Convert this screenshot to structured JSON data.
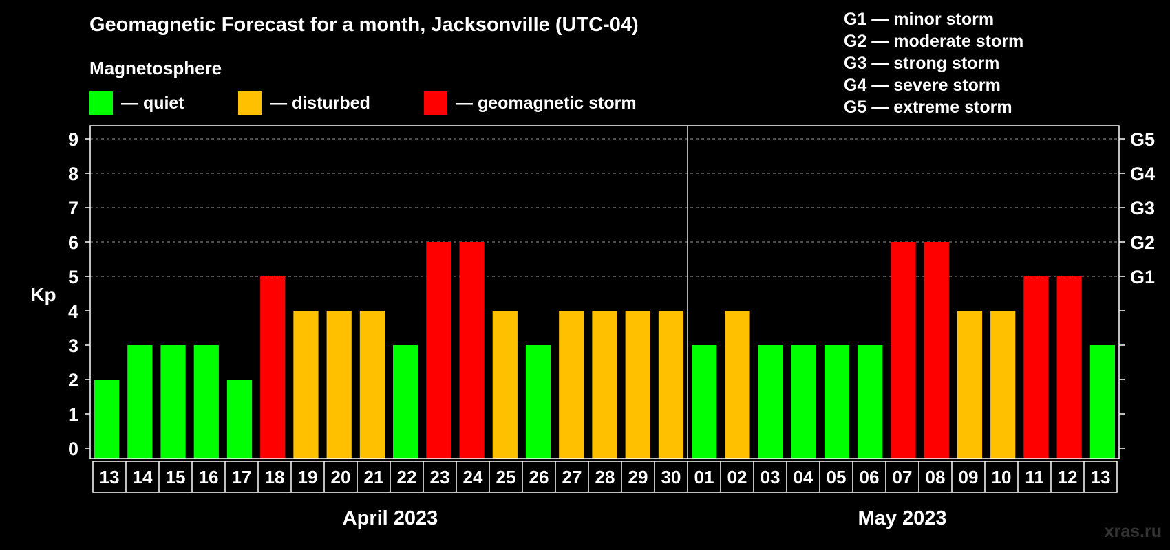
{
  "title": "Geomagnetic Forecast for a month, Jacksonville (UTC-04)",
  "legend": {
    "heading": "Magnetosphere",
    "items": [
      {
        "label": "— quiet",
        "color": "#00ff00"
      },
      {
        "label": "— disturbed",
        "color": "#ffc000"
      },
      {
        "label": "— geomagnetic storm",
        "color": "#ff0000"
      }
    ]
  },
  "storm_scale": [
    "G1 — minor storm",
    "G2 — moderate storm",
    "G3 — strong storm",
    "G4 — severe storm",
    "G5 — extreme storm"
  ],
  "watermark": "xras.ru",
  "chart_data": {
    "type": "bar",
    "ylabel": "Kp",
    "ylim": [
      0,
      9
    ],
    "yticks": [
      "0",
      "1",
      "2",
      "3",
      "4",
      "5",
      "6",
      "7",
      "8",
      "9"
    ],
    "right_axis_labels": [
      {
        "kp": 5,
        "label": "G1"
      },
      {
        "kp": 6,
        "label": "G2"
      },
      {
        "kp": 7,
        "label": "G3"
      },
      {
        "kp": 8,
        "label": "G4"
      },
      {
        "kp": 9,
        "label": "G5"
      }
    ],
    "grid": "dashed horizontal at Kp 5-9",
    "categories": [
      "13",
      "14",
      "15",
      "16",
      "17",
      "18",
      "19",
      "20",
      "21",
      "22",
      "23",
      "24",
      "25",
      "26",
      "27",
      "28",
      "29",
      "30",
      "01",
      "02",
      "03",
      "04",
      "05",
      "06",
      "07",
      "08",
      "09",
      "10",
      "11",
      "12",
      "13"
    ],
    "values": [
      2,
      3,
      3,
      3,
      2,
      5,
      4,
      4,
      4,
      3,
      6,
      6,
      4,
      3,
      4,
      4,
      4,
      4,
      3,
      4,
      3,
      3,
      3,
      3,
      6,
      6,
      4,
      4,
      5,
      5,
      3
    ],
    "status": [
      "quiet",
      "quiet",
      "quiet",
      "quiet",
      "quiet",
      "storm",
      "disturbed",
      "disturbed",
      "disturbed",
      "quiet",
      "storm",
      "storm",
      "disturbed",
      "quiet",
      "disturbed",
      "disturbed",
      "disturbed",
      "disturbed",
      "quiet",
      "disturbed",
      "quiet",
      "quiet",
      "quiet",
      "quiet",
      "storm",
      "storm",
      "disturbed",
      "disturbed",
      "storm",
      "storm",
      "quiet"
    ],
    "months": [
      {
        "label": "April 2023",
        "start": 0,
        "end": 17
      },
      {
        "label": "May 2023",
        "start": 18,
        "end": 30
      }
    ]
  }
}
